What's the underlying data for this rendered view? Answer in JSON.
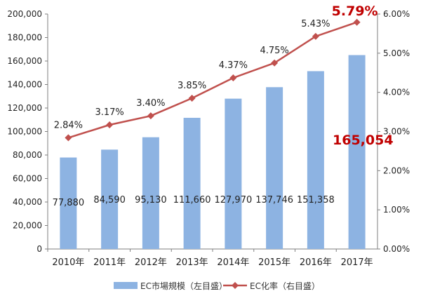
{
  "chart_data": {
    "type": "bar",
    "categories": [
      "2010年",
      "2011年",
      "2012年",
      "2013年",
      "2014年",
      "2015年",
      "2016年",
      "2017年"
    ],
    "series": [
      {
        "name": "EC市場規模（左目盛）",
        "kind": "bar",
        "axis": "left",
        "values": [
          77880,
          84590,
          95130,
          111660,
          127970,
          137746,
          151358,
          165054
        ],
        "labels": [
          "77,880",
          "84,590",
          "95,130",
          "111,660",
          "127,970",
          "137,746",
          "151,358",
          "165,054"
        ],
        "color": "#8db3e2"
      },
      {
        "name": "EC化率（右目盛）",
        "kind": "line",
        "axis": "right",
        "values": [
          2.84,
          3.17,
          3.4,
          3.85,
          4.37,
          4.75,
          5.43,
          5.79
        ],
        "labels": [
          "2.84%",
          "3.17%",
          "3.40%",
          "3.85%",
          "4.37%",
          "4.75%",
          "5.43%",
          "5.79%"
        ],
        "color": "#c0504d"
      }
    ],
    "left_axis": {
      "range": [
        0,
        200000
      ],
      "ticks": [
        "0",
        "20,000",
        "40,000",
        "60,000",
        "80,000",
        "100,000",
        "120,000",
        "140,000",
        "160,000",
        "180,000",
        "200,000"
      ]
    },
    "right_axis": {
      "range": [
        0,
        6
      ],
      "ticks": [
        "0.00%",
        "1.00%",
        "2.00%",
        "3.00%",
        "4.00%",
        "5.00%",
        "6.00%"
      ]
    },
    "highlight_color": "#c00000",
    "grid": false,
    "legend_position": "bottom"
  }
}
